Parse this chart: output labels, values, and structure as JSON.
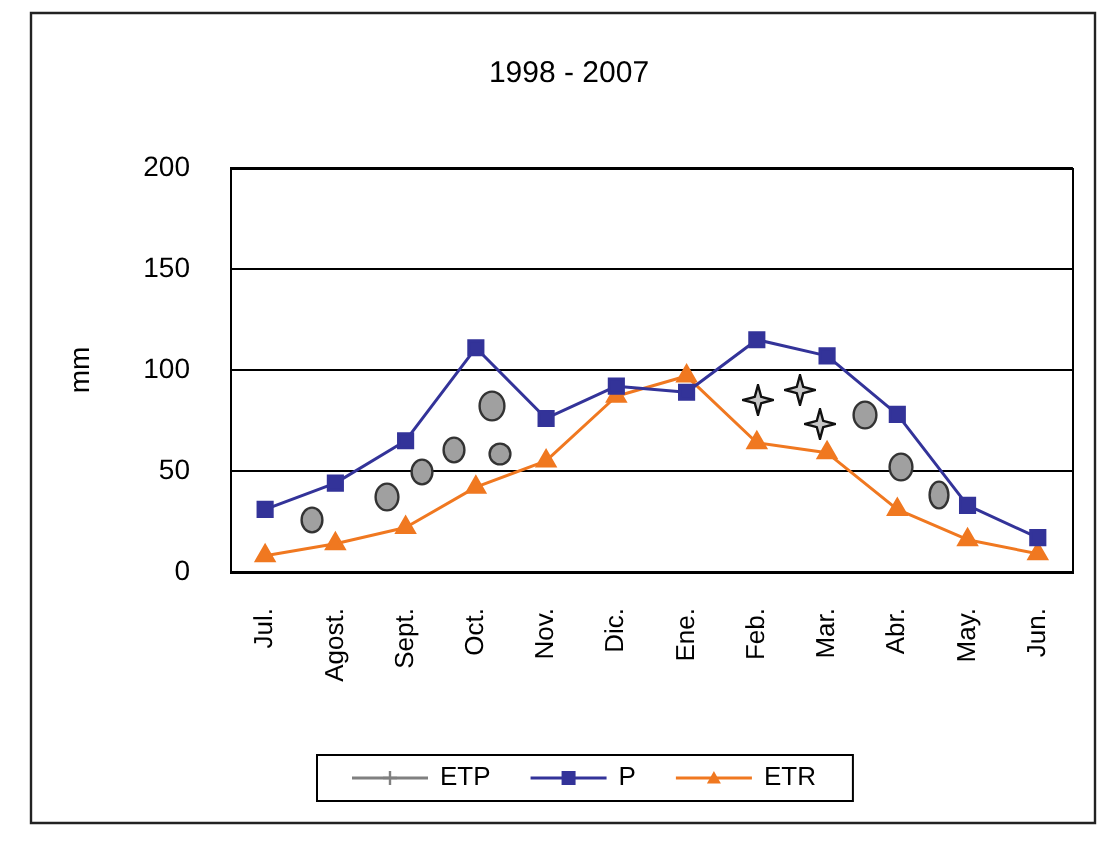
{
  "chart_data": {
    "type": "line",
    "title": "1998 - 2007",
    "ylabel": "mm",
    "categories": [
      "Jul.",
      "Agost.",
      "Sept.",
      "Oct.",
      "Nov.",
      "Dic.",
      "Ene.",
      "Feb.",
      "Mar.",
      "Abr.",
      "May.",
      "Jun."
    ],
    "series": [
      {
        "name": "ETP",
        "color": "#808080",
        "marker": "cross",
        "values": [
          null,
          null,
          null,
          null,
          null,
          null,
          null,
          null,
          null,
          null,
          null,
          null
        ]
      },
      {
        "name": "P",
        "color": "#333399",
        "marker": "square",
        "values": [
          31,
          44,
          65,
          111,
          76,
          92,
          89,
          115,
          107,
          78,
          33,
          17
        ]
      },
      {
        "name": "ETR",
        "color": "#f07820",
        "marker": "triangle",
        "values": [
          8,
          14,
          22,
          42,
          55,
          87,
          97,
          64,
          59,
          31,
          16,
          9
        ]
      }
    ],
    "ylim": [
      0,
      200
    ],
    "yticks": [
      0,
      50,
      100,
      150,
      200
    ],
    "grid": "y",
    "legend": "bottom",
    "line_style": "solid"
  }
}
